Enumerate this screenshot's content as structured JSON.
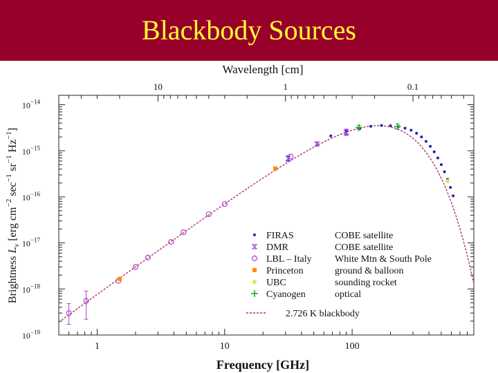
{
  "slide": {
    "title": "Blackbody Sources"
  },
  "colors": {
    "banner": "#97002a",
    "title": "#ffff33",
    "firas": "#1e1e9e",
    "dmr": "#8a2be2",
    "lbl": "#b040d0",
    "princeton": "#ff8c00",
    "ubc": "#e8e060",
    "cyanogen": "#22aa22",
    "curve": "#b0306a"
  },
  "chart_data": {
    "type": "scatter",
    "title": "",
    "xlabel": "Frequency [GHz]",
    "ylabel_prefix": "Brightness ",
    "ylabel_symbol": "L",
    "ylabel_subscript": "ν",
    "ylabel_suffix": " [erg cm",
    "ylabel_exp1": "−2",
    "ylabel_mid1": " sec",
    "ylabel_exp2": "−1",
    "ylabel_mid2": " sr",
    "ylabel_exp3": "−1",
    "ylabel_mid3": " Hz",
    "ylabel_exp4": "−1",
    "ylabel_end": "]",
    "x2label": "Wavelength [cm]",
    "x_scale": "log",
    "y_scale": "log",
    "xlim": [
      0.5,
      900
    ],
    "ylim": [
      1e-19,
      1.6e-14
    ],
    "x_ticks": [
      {
        "value": 1,
        "label": "1"
      },
      {
        "value": 10,
        "label": "10"
      },
      {
        "value": 100,
        "label": "100"
      }
    ],
    "x2_ticks": [
      {
        "value": 3,
        "label": "10"
      },
      {
        "value": 30,
        "label": "1"
      },
      {
        "value": 300,
        "label": "0.1"
      }
    ],
    "y_ticks": [
      {
        "value": 1e-19,
        "mant": "10",
        "exp": "−19"
      },
      {
        "value": 1e-18,
        "mant": "10",
        "exp": "−18"
      },
      {
        "value": 1e-17,
        "mant": "10",
        "exp": "−17"
      },
      {
        "value": 1e-16,
        "mant": "10",
        "exp": "−16"
      },
      {
        "value": 1e-15,
        "mant": "10",
        "exp": "−15"
      },
      {
        "value": 1e-14,
        "mant": "10",
        "exp": "−14"
      }
    ],
    "grid": false,
    "legend_placement": "bottom-right",
    "model_curve": {
      "name": "2.726 K blackbody",
      "temperature_K": 2.726
    },
    "series": [
      {
        "name": "FIRAS",
        "source": "COBE satellite",
        "marker": "square",
        "color": "#1e1e9e",
        "points": [
          {
            "x": 68,
            "y": 2.1e-15
          },
          {
            "x": 90,
            "y": 2.7e-15
          },
          {
            "x": 115,
            "y": 3.1e-15
          },
          {
            "x": 140,
            "y": 3.4e-15
          },
          {
            "x": 170,
            "y": 3.55e-15
          },
          {
            "x": 200,
            "y": 3.5e-15
          },
          {
            "x": 230,
            "y": 3.35e-15
          },
          {
            "x": 260,
            "y": 3.1e-15
          },
          {
            "x": 290,
            "y": 2.8e-15
          },
          {
            "x": 320,
            "y": 2.4e-15
          },
          {
            "x": 350,
            "y": 2e-15
          },
          {
            "x": 380,
            "y": 1.6e-15
          },
          {
            "x": 410,
            "y": 1.25e-15
          },
          {
            "x": 440,
            "y": 9.5e-16
          },
          {
            "x": 470,
            "y": 7e-16
          },
          {
            "x": 500,
            "y": 5e-16
          },
          {
            "x": 530,
            "y": 3.5e-16
          },
          {
            "x": 560,
            "y": 2.4e-16
          },
          {
            "x": 590,
            "y": 1.6e-16
          },
          {
            "x": 620,
            "y": 1.05e-16
          }
        ]
      },
      {
        "name": "DMR",
        "source": "COBE satellite",
        "marker": "errorbar",
        "color": "#8a2be2",
        "points": [
          {
            "x": 31.5,
            "y": 6.8e-16,
            "ylow": 5.9e-16,
            "yhigh": 7.9e-16
          },
          {
            "x": 53,
            "y": 1.4e-15,
            "ylow": 1.28e-15,
            "yhigh": 1.55e-15
          },
          {
            "x": 90,
            "y": 2.5e-15,
            "ylow": 2.15e-15,
            "yhigh": 2.95e-15
          }
        ]
      },
      {
        "name": "LBL – Italy",
        "source": "White Mtn & South Pole",
        "marker": "circle",
        "color": "#b040d0",
        "points": [
          {
            "x": 0.6,
            "y": 3e-19,
            "ylow": 1.7e-19,
            "yhigh": 4.8e-19
          },
          {
            "x": 0.82,
            "y": 5.5e-19,
            "ylow": 2.2e-19,
            "yhigh": 9e-19
          },
          {
            "x": 1.47,
            "y": 1.5e-18
          },
          {
            "x": 2.0,
            "y": 3e-18
          },
          {
            "x": 2.5,
            "y": 4.8e-18
          },
          {
            "x": 3.8,
            "y": 1.05e-17
          },
          {
            "x": 4.75,
            "y": 1.7e-17
          },
          {
            "x": 7.5,
            "y": 4.2e-17
          },
          {
            "x": 10.0,
            "y": 7e-17
          },
          {
            "x": 33,
            "y": 7.5e-16
          }
        ]
      },
      {
        "name": "Princeton",
        "source": "ground & balloon",
        "marker": "filled-square",
        "color": "#ff8c00",
        "points": [
          {
            "x": 1.5,
            "y": 1.65e-18
          },
          {
            "x": 25,
            "y": 4.1e-16
          }
        ]
      },
      {
        "name": "UBC",
        "source": "sounding rocket",
        "marker": "filled-circle",
        "color": "#e8e060",
        "points": [
          {
            "x": 560,
            "y": 2.2e-16
          }
        ]
      },
      {
        "name": "Cyanogen",
        "source": "optical",
        "marker": "plus",
        "color": "#22aa22",
        "points": [
          {
            "x": 113,
            "y": 3.2e-15,
            "ylow": 2.85e-15,
            "yhigh": 3.55e-15
          },
          {
            "x": 227,
            "y": 3.35e-15,
            "ylow": 2.95e-15,
            "yhigh": 3.8e-15
          }
        ]
      }
    ]
  }
}
